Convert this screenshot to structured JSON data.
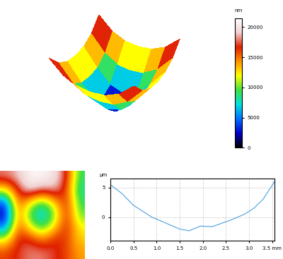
{
  "chart_data": [
    {
      "type": "surface",
      "tick_labels": false,
      "cells": [
        [
          21000,
          17000,
          15000,
          14500,
          15000,
          17000,
          21000
        ],
        [
          17000,
          12000,
          9500,
          9000,
          9500,
          12000,
          17000
        ],
        [
          15000,
          9500,
          5000,
          3500,
          5000,
          9500,
          15000
        ],
        [
          14500,
          9000,
          3500,
          0,
          3500,
          9000,
          14500
        ],
        [
          15000,
          9500,
          5000,
          3500,
          5000,
          9500,
          15000
        ],
        [
          17000,
          12000,
          9500,
          9000,
          9500,
          12000,
          17000
        ],
        [
          21000,
          17000,
          15000,
          14500,
          15000,
          17000,
          21000
        ]
      ],
      "colorbar": {
        "label": "nm",
        "range": [
          0,
          21500
        ],
        "ticks": [
          0,
          5000,
          10000,
          15000,
          20000
        ]
      }
    },
    {
      "type": "image",
      "tick_labels": false,
      "cells": [
        [
          18000,
          19000,
          21000,
          21000,
          20000,
          17000,
          9000
        ],
        [
          12000,
          17000,
          20000,
          18000,
          19000,
          16000,
          8000
        ],
        [
          4000,
          16000,
          12000,
          9000,
          13000,
          17000,
          9000
        ],
        [
          2000,
          15000,
          9000,
          6000,
          10000,
          17000,
          10000
        ],
        [
          5000,
          16000,
          12000,
          9000,
          13000,
          17000,
          12000
        ],
        [
          12000,
          17000,
          17000,
          15000,
          17000,
          16000,
          13000
        ],
        [
          16000,
          17000,
          18000,
          18000,
          17000,
          16000,
          14000
        ]
      ],
      "range": [
        0,
        21500
      ]
    },
    {
      "type": "line",
      "ylabel": "µm",
      "x": [
        0.0,
        0.25,
        0.5,
        0.7,
        0.9,
        1.2,
        1.5,
        1.7,
        1.95,
        2.2,
        2.6,
        2.9,
        3.1,
        3.3,
        3.55
      ],
      "values": [
        5.5,
        4.0,
        2.0,
        1.0,
        0.0,
        -1.0,
        -2.0,
        -2.3,
        -1.5,
        -1.6,
        -0.5,
        0.5,
        1.5,
        3.0,
        6.0
      ],
      "color": "#4a9fe0",
      "xlim": [
        0.0,
        3.55
      ],
      "ylim": [
        -4.0,
        6.5
      ],
      "xticks": [
        {
          "value": 0.0,
          "label": "0.0"
        },
        {
          "value": 0.5,
          "label": "0.5"
        },
        {
          "value": 1.0,
          "label": "1.0"
        },
        {
          "value": 1.5,
          "label": "1.5"
        },
        {
          "value": 2.0,
          "label": "2.0"
        },
        {
          "value": 2.5,
          "label": "2.5"
        },
        {
          "value": 3.0,
          "label": "3.0"
        },
        {
          "value": 3.5,
          "label": "3.5 mm"
        }
      ],
      "yticks": [
        0,
        5
      ],
      "grid": true
    }
  ]
}
